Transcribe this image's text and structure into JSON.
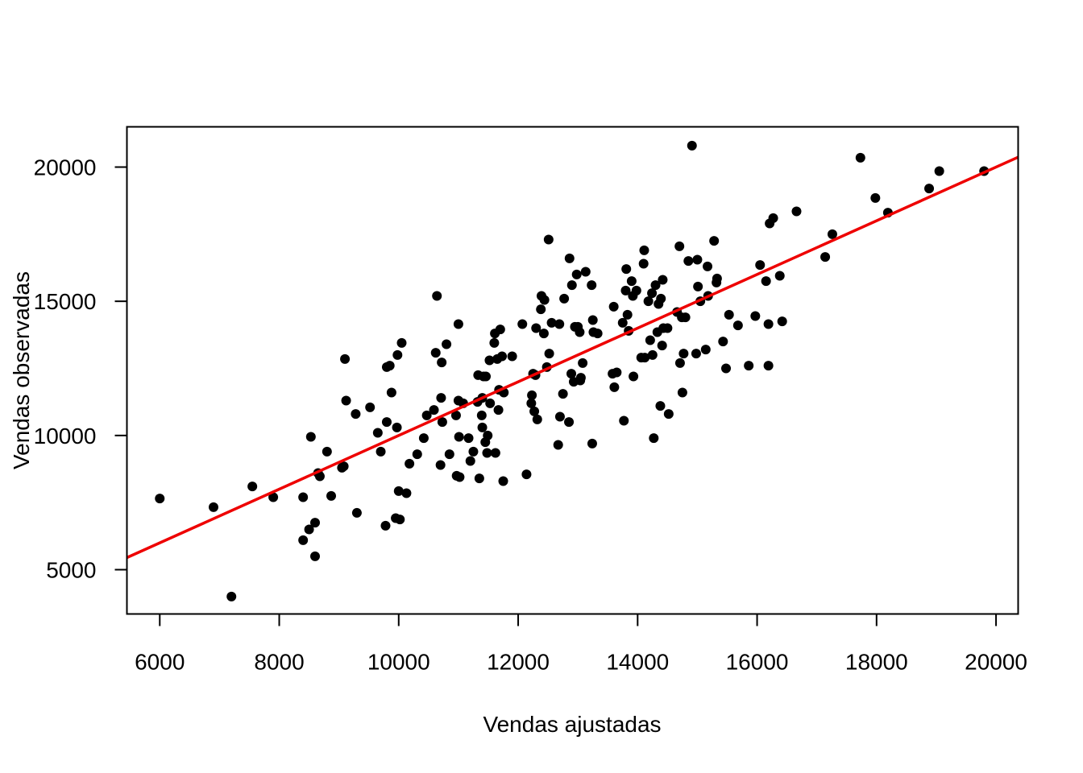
{
  "chart_data": {
    "type": "scatter",
    "title": "",
    "xlabel": "Vendas ajustadas",
    "ylabel": "Vendas observadas",
    "xlim": [
      5450,
      20370
    ],
    "ylim": [
      3350,
      21500
    ],
    "x_ticks": [
      6000,
      8000,
      10000,
      12000,
      14000,
      16000,
      18000,
      20000
    ],
    "y_ticks": [
      5000,
      10000,
      15000,
      20000
    ],
    "x_tick_labels": [
      "6000",
      "8000",
      "10000",
      "12000",
      "14000",
      "16000",
      "18000",
      "20000"
    ],
    "y_tick_labels": [
      "5000",
      "10000",
      "15000",
      "20000"
    ],
    "grid": false,
    "legend": "none",
    "point_color": "#000000",
    "line_color": "#ee0000",
    "reference_line": {
      "slope": 1,
      "intercept": 0
    },
    "points": [
      [
        6000,
        7650
      ],
      [
        6900,
        7330
      ],
      [
        7200,
        4000
      ],
      [
        7550,
        8100
      ],
      [
        7900,
        7700
      ],
      [
        8400,
        7700
      ],
      [
        8400,
        6100
      ],
      [
        8500,
        6500
      ],
      [
        8530,
        9950
      ],
      [
        8600,
        6750
      ],
      [
        8600,
        5500
      ],
      [
        8650,
        8600
      ],
      [
        8680,
        8480
      ],
      [
        8800,
        9400
      ],
      [
        8870,
        7750
      ],
      [
        9050,
        8800
      ],
      [
        9080,
        8850
      ],
      [
        9100,
        12850
      ],
      [
        9120,
        11300
      ],
      [
        9280,
        10800
      ],
      [
        9300,
        7120
      ],
      [
        9520,
        11050
      ],
      [
        9650,
        10100
      ],
      [
        9700,
        9400
      ],
      [
        9780,
        6640
      ],
      [
        9800,
        10500
      ],
      [
        9800,
        12550
      ],
      [
        9850,
        12600
      ],
      [
        9880,
        11600
      ],
      [
        9950,
        6920
      ],
      [
        9970,
        10300
      ],
      [
        9980,
        13000
      ],
      [
        10020,
        6870
      ],
      [
        10050,
        13450
      ],
      [
        10000,
        7930
      ],
      [
        10130,
        7850
      ],
      [
        10180,
        8950
      ],
      [
        10310,
        9300
      ],
      [
        10420,
        9900
      ],
      [
        10470,
        10750
      ],
      [
        10590,
        10950
      ],
      [
        10620,
        13080
      ],
      [
        10640,
        15200
      ],
      [
        10700,
        8900
      ],
      [
        10710,
        11400
      ],
      [
        10720,
        12720
      ],
      [
        10730,
        10500
      ],
      [
        10800,
        13400
      ],
      [
        10850,
        9300
      ],
      [
        10960,
        10750
      ],
      [
        10970,
        8500
      ],
      [
        11000,
        11300
      ],
      [
        11000,
        14150
      ],
      [
        11010,
        9950
      ],
      [
        11020,
        8450
      ],
      [
        11080,
        11200
      ],
      [
        11170,
        9900
      ],
      [
        11200,
        9050
      ],
      [
        11250,
        9400
      ],
      [
        11320,
        11250
      ],
      [
        11330,
        12250
      ],
      [
        11350,
        8400
      ],
      [
        11390,
        10750
      ],
      [
        11400,
        10300
      ],
      [
        11400,
        11400
      ],
      [
        11420,
        12200
      ],
      [
        11450,
        9750
      ],
      [
        11460,
        12200
      ],
      [
        11480,
        9350
      ],
      [
        11490,
        10000
      ],
      [
        11520,
        12800
      ],
      [
        11530,
        11200
      ],
      [
        11600,
        13450
      ],
      [
        11610,
        13800
      ],
      [
        11620,
        9350
      ],
      [
        11650,
        12850
      ],
      [
        11670,
        10950
      ],
      [
        11680,
        11700
      ],
      [
        11700,
        13950
      ],
      [
        11730,
        12950
      ],
      [
        11750,
        8300
      ],
      [
        11760,
        11600
      ],
      [
        11900,
        12950
      ],
      [
        12070,
        14150
      ],
      [
        12140,
        8550
      ],
      [
        12220,
        11200
      ],
      [
        12230,
        11500
      ],
      [
        12250,
        12300
      ],
      [
        12270,
        10900
      ],
      [
        12290,
        12250
      ],
      [
        12300,
        14000
      ],
      [
        12320,
        10600
      ],
      [
        12380,
        14700
      ],
      [
        12390,
        15200
      ],
      [
        12430,
        13800
      ],
      [
        12440,
        15050
      ],
      [
        12480,
        12550
      ],
      [
        12510,
        17300
      ],
      [
        12520,
        13050
      ],
      [
        12560,
        14200
      ],
      [
        12670,
        9650
      ],
      [
        12690,
        14150
      ],
      [
        12700,
        10700
      ],
      [
        12750,
        11550
      ],
      [
        12770,
        15100
      ],
      [
        12850,
        10500
      ],
      [
        12860,
        16600
      ],
      [
        12890,
        12300
      ],
      [
        12900,
        15600
      ],
      [
        12930,
        12000
      ],
      [
        12950,
        14050
      ],
      [
        12980,
        16000
      ],
      [
        13000,
        14050
      ],
      [
        13030,
        13850
      ],
      [
        13040,
        12050
      ],
      [
        13050,
        12150
      ],
      [
        13080,
        12700
      ],
      [
        13130,
        16100
      ],
      [
        13230,
        15600
      ],
      [
        13240,
        9700
      ],
      [
        13250,
        14300
      ],
      [
        13260,
        13850
      ],
      [
        13330,
        13800
      ],
      [
        13580,
        12300
      ],
      [
        13600,
        14800
      ],
      [
        13610,
        11800
      ],
      [
        13650,
        12350
      ],
      [
        13750,
        14200
      ],
      [
        13770,
        10550
      ],
      [
        13800,
        15400
      ],
      [
        13810,
        16200
      ],
      [
        13830,
        14500
      ],
      [
        13850,
        13900
      ],
      [
        13900,
        15750
      ],
      [
        13920,
        15200
      ],
      [
        13930,
        12200
      ],
      [
        13980,
        15400
      ],
      [
        14060,
        12900
      ],
      [
        14100,
        16400
      ],
      [
        14110,
        16900
      ],
      [
        14120,
        12900
      ],
      [
        14180,
        15000
      ],
      [
        14210,
        13550
      ],
      [
        14240,
        15300
      ],
      [
        14250,
        13000
      ],
      [
        14270,
        9900
      ],
      [
        14300,
        15600
      ],
      [
        14330,
        13850
      ],
      [
        14350,
        14900
      ],
      [
        14380,
        11100
      ],
      [
        14390,
        15100
      ],
      [
        14410,
        13350
      ],
      [
        14420,
        15800
      ],
      [
        14430,
        14000
      ],
      [
        14500,
        14000
      ],
      [
        14520,
        10800
      ],
      [
        14660,
        14600
      ],
      [
        14700,
        17050
      ],
      [
        14710,
        12700
      ],
      [
        14740,
        14400
      ],
      [
        14750,
        11600
      ],
      [
        14770,
        13050
      ],
      [
        14800,
        14400
      ],
      [
        14850,
        16500
      ],
      [
        14910,
        20800
      ],
      [
        15000,
        16550
      ],
      [
        14980,
        13050
      ],
      [
        15010,
        15550
      ],
      [
        15050,
        15000
      ],
      [
        15140,
        13200
      ],
      [
        15170,
        16300
      ],
      [
        15180,
        15200
      ],
      [
        15280,
        17250
      ],
      [
        15320,
        15700
      ],
      [
        15330,
        15850
      ],
      [
        15430,
        13500
      ],
      [
        15480,
        12500
      ],
      [
        15530,
        14500
      ],
      [
        15680,
        14100
      ],
      [
        15860,
        12600
      ],
      [
        15970,
        14450
      ],
      [
        16050,
        16350
      ],
      [
        16150,
        15750
      ],
      [
        16190,
        14150
      ],
      [
        16190,
        12600
      ],
      [
        16210,
        17900
      ],
      [
        16270,
        18100
      ],
      [
        16380,
        15950
      ],
      [
        16420,
        14250
      ],
      [
        16660,
        18350
      ],
      [
        17140,
        16650
      ],
      [
        17260,
        17500
      ],
      [
        17730,
        20350
      ],
      [
        17980,
        18850
      ],
      [
        18190,
        18300
      ],
      [
        18880,
        19200
      ],
      [
        19050,
        19850
      ],
      [
        19800,
        19850
      ]
    ]
  }
}
